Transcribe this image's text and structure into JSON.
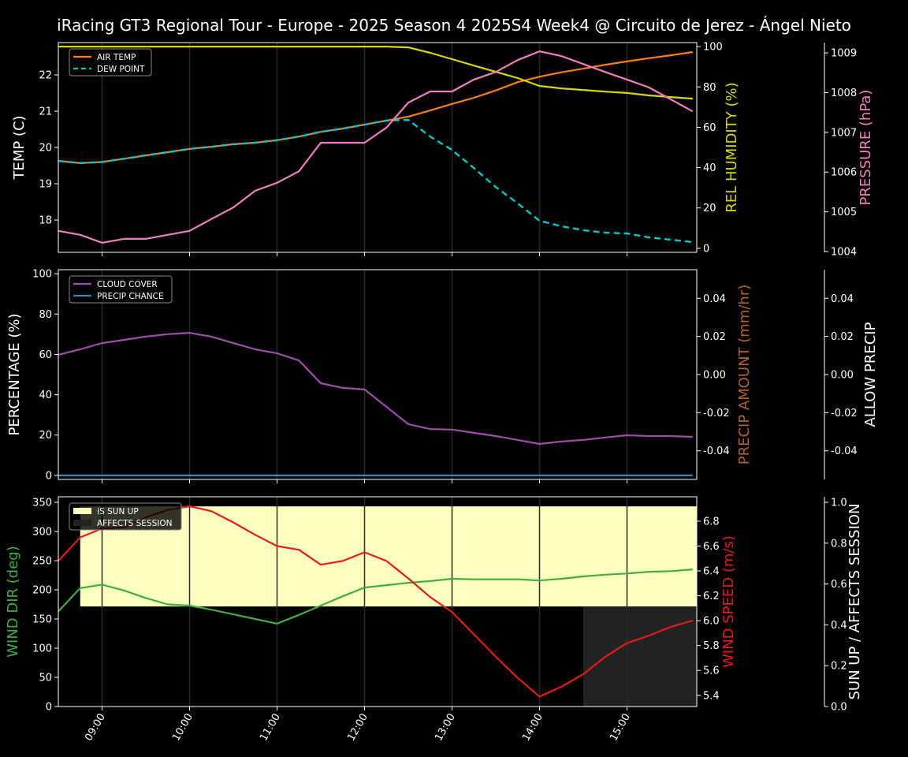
{
  "title": "iRacing GT3 Regional Tour - Europe - 2025 Season 4 2025S4 Week4 @ Circuito de Jerez - Ángel Nieto",
  "colors": {
    "air_temp": "#ff7f0e",
    "dew_point": "#00c8c8",
    "humidity": "#d8d800",
    "pressure": "#f080c0",
    "cloud_cover": "#a04ca8",
    "precip_chance": "#3f7fc0",
    "precip_amount": "#b0622d",
    "wind_dir": "#3fae3f",
    "wind_speed": "#e41a1c",
    "sun_up": "#ffffc0",
    "affects_session": "#222222"
  },
  "chart_data": [
    {
      "type": "line",
      "xlabel_ticks": [
        "09:00",
        "10:00",
        "11:00",
        "12:00",
        "13:00",
        "14:00",
        "15:00"
      ],
      "x": [
        "08:30",
        "08:45",
        "09:00",
        "09:15",
        "09:30",
        "09:45",
        "10:00",
        "10:15",
        "10:30",
        "10:45",
        "11:00",
        "11:15",
        "11:30",
        "11:45",
        "12:00",
        "12:15",
        "12:30",
        "12:45",
        "13:00",
        "13:15",
        "13:30",
        "13:45",
        "14:00",
        "14:15",
        "14:30",
        "14:45",
        "15:00",
        "15:15",
        "15:30",
        "15:45"
      ],
      "axes": {
        "left": {
          "label": "TEMP (C)",
          "ylim": [
            17.11,
            22.89
          ],
          "ticks": [
            18,
            19,
            20,
            21,
            22
          ]
        },
        "right": {
          "label": "REL HUMIDITY (%)",
          "ylim": [
            -2,
            102
          ],
          "ticks": [
            0,
            20,
            40,
            60,
            80,
            100
          ]
        },
        "right2": {
          "label": "PRESSURE (hPa)",
          "ylim": [
            1003.98,
            1009.26
          ],
          "ticks": [
            1004,
            1005,
            1006,
            1007,
            1008,
            1009
          ]
        }
      },
      "legend": {
        "placement": "upper-left",
        "entries": [
          "AIR TEMP",
          "DEW POINT"
        ]
      },
      "series": [
        {
          "name": "AIR TEMP",
          "axis": "left",
          "color_key": "air_temp",
          "values": [
            19.63,
            19.57,
            19.6,
            19.69,
            19.78,
            19.87,
            19.96,
            20.02,
            20.09,
            20.13,
            20.2,
            20.3,
            20.43,
            20.52,
            20.63,
            20.74,
            20.85,
            21.02,
            21.2,
            21.37,
            21.57,
            21.8,
            21.95,
            22.07,
            22.17,
            22.28,
            22.37,
            22.46,
            22.54,
            22.63
          ]
        },
        {
          "name": "DEW POINT",
          "axis": "left",
          "color_key": "dew_point",
          "dashed": true,
          "values": [
            19.63,
            19.57,
            19.6,
            19.69,
            19.78,
            19.87,
            19.96,
            20.02,
            20.09,
            20.13,
            20.2,
            20.3,
            20.43,
            20.52,
            20.63,
            20.74,
            20.76,
            20.3,
            19.93,
            19.43,
            18.91,
            18.46,
            17.98,
            17.83,
            17.72,
            17.65,
            17.63,
            17.52,
            17.46,
            17.39
          ]
        },
        {
          "axis": "right",
          "color_key": "humidity",
          "values": [
            100,
            100,
            100,
            100,
            100,
            100,
            100,
            100,
            100,
            100,
            100,
            100,
            100,
            100,
            100,
            100,
            99.6,
            96.9,
            93.8,
            90.6,
            87.5,
            84.4,
            80.5,
            79.3,
            78.5,
            77.7,
            77,
            75.8,
            75,
            74.2
          ]
        },
        {
          "axis": "right2",
          "color_key": "pressure",
          "values": [
            1004.52,
            1004.42,
            1004.22,
            1004.32,
            1004.32,
            1004.42,
            1004.52,
            1004.82,
            1005.11,
            1005.53,
            1005.73,
            1006.02,
            1006.74,
            1006.74,
            1006.74,
            1007.12,
            1007.75,
            1008.03,
            1008.03,
            1008.33,
            1008.52,
            1008.82,
            1009.04,
            1008.92,
            1008.72,
            1008.52,
            1008.33,
            1008.13,
            1007.83,
            1007.53
          ]
        }
      ]
    },
    {
      "type": "line",
      "axes": {
        "left": {
          "label": "PERCENTAGE (%)",
          "ylim": [
            -2,
            102
          ],
          "ticks": [
            0,
            20,
            40,
            60,
            80,
            100
          ]
        },
        "right": {
          "label": "PRECIP AMOUNT (mm/hr)",
          "ylim": [
            -0.055,
            0.055
          ],
          "ticks": [
            "-0.04",
            "-0.02",
            "0.00",
            "0.02",
            "0.04"
          ]
        },
        "right2": {
          "label": "ALLOW PRECIP",
          "ylim": [
            -0.055,
            0.055
          ],
          "ticks": [
            "-0.04",
            "-0.02",
            "0.00",
            "0.02",
            "0.04"
          ]
        }
      },
      "legend": {
        "placement": "upper-left",
        "entries": [
          "CLOUD COVER",
          "PRECIP CHANCE"
        ]
      },
      "series": [
        {
          "name": "CLOUD COVER",
          "axis": "left",
          "color_key": "cloud_cover",
          "values": [
            59.8,
            62.5,
            65.6,
            67.2,
            68.8,
            70,
            70.7,
            68.8,
            65.6,
            62.5,
            60.5,
            57,
            45.7,
            43.4,
            42.6,
            34,
            25.4,
            23,
            22.7,
            21.1,
            19.5,
            17.6,
            15.6,
            16.8,
            17.6,
            18.8,
            19.9,
            19.5,
            19.5,
            19.1
          ]
        },
        {
          "name": "PRECIP CHANCE",
          "axis": "left",
          "color_key": "precip_chance",
          "values": [
            0,
            0,
            0,
            0,
            0,
            0,
            0,
            0,
            0,
            0,
            0,
            0,
            0,
            0,
            0,
            0,
            0,
            0,
            0,
            0,
            0,
            0,
            0,
            0,
            0,
            0,
            0,
            0,
            0,
            0
          ]
        }
      ]
    },
    {
      "type": "line",
      "axes": {
        "left": {
          "label": "WIND DIR (deg)",
          "ylim": [
            0,
            359.5
          ],
          "ticks": [
            0,
            50,
            100,
            150,
            200,
            250,
            300,
            350
          ]
        },
        "right": {
          "label": "WIND SPEED (m/s)",
          "ylim": [
            5.31,
            6.996
          ],
          "ticks": [
            "5.4",
            "5.6",
            "5.8",
            "6.0",
            "6.2",
            "6.4",
            "6.6",
            "6.8"
          ]
        },
        "right2": {
          "label": "SUN UP / AFFECTS SESSION",
          "ylim": [
            0,
            1.027
          ],
          "ticks": [
            "0.0",
            "0.2",
            "0.4",
            "0.6",
            "0.8",
            "1.0"
          ]
        }
      },
      "legend": {
        "placement": "upper-left",
        "entries": [
          "IS SUN UP",
          "AFFECTS SESSION"
        ]
      },
      "sun_up": [
        0,
        1,
        1,
        1,
        1,
        1,
        1,
        1,
        1,
        1,
        1,
        1,
        1,
        1,
        1,
        1,
        1,
        1,
        1,
        1,
        1,
        1,
        1,
        1,
        1,
        1,
        1,
        1,
        1,
        1
      ],
      "affects_session": [
        0,
        0,
        0,
        0,
        0,
        0,
        0,
        0,
        0,
        0,
        0,
        0,
        0,
        0,
        0,
        0,
        0,
        0,
        0,
        0,
        0,
        0,
        0,
        0,
        1,
        1,
        1,
        1,
        1,
        1
      ],
      "series": [
        {
          "axis": "left",
          "color_key": "wind_dir",
          "values": [
            163,
            203,
            209,
            199,
            186,
            175,
            173,
            166,
            158,
            150,
            142,
            157,
            173,
            189,
            204,
            208,
            212,
            215,
            219,
            218,
            218,
            218,
            216,
            219,
            223,
            226,
            228,
            231,
            232,
            235
          ]
        },
        {
          "axis": "right",
          "color_key": "wind_speed",
          "values": [
            6.48,
            6.67,
            6.74,
            6.75,
            6.83,
            6.89,
            6.92,
            6.88,
            6.79,
            6.69,
            6.6,
            6.57,
            6.45,
            6.48,
            6.55,
            6.48,
            6.34,
            6.19,
            6.07,
            5.89,
            5.71,
            5.54,
            5.39,
            5.47,
            5.57,
            5.71,
            5.82,
            5.88,
            5.95,
            6.0
          ]
        }
      ]
    }
  ]
}
